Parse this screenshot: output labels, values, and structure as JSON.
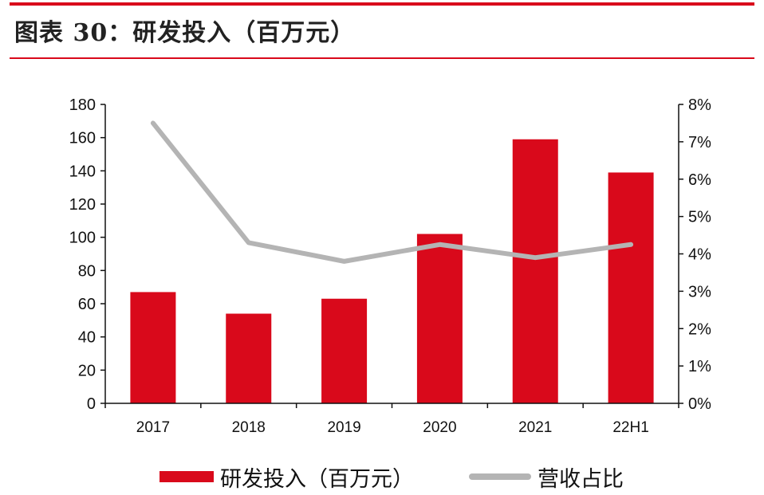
{
  "header": {
    "title": "图表 30：研发投入（百万元）"
  },
  "colors": {
    "accent_red": "#d9091b",
    "line_gray": "#b4b4b4",
    "axis": "#111111"
  },
  "chart_data": {
    "type": "bar",
    "categories": [
      "2017",
      "2018",
      "2019",
      "2020",
      "2021",
      "22H1"
    ],
    "series": [
      {
        "name": "研发投入（百万元）",
        "type": "bar",
        "axis": "left",
        "values": [
          67,
          54,
          63,
          102,
          159,
          139
        ]
      },
      {
        "name": "营收占比",
        "type": "line",
        "axis": "right",
        "values": [
          7.5,
          4.3,
          3.8,
          4.25,
          3.9,
          4.25
        ]
      }
    ],
    "y_left": {
      "min": 0,
      "max": 180,
      "step": 20,
      "ticks": [
        "0",
        "20",
        "40",
        "60",
        "80",
        "100",
        "120",
        "140",
        "160",
        "180"
      ]
    },
    "y_right": {
      "min": 0,
      "max": 8,
      "step": 1,
      "unit": "%",
      "ticks": [
        "0%",
        "1%",
        "2%",
        "3%",
        "4%",
        "5%",
        "6%",
        "7%",
        "8%"
      ]
    },
    "grid": false,
    "legend_position": "bottom"
  },
  "legend": {
    "items": [
      {
        "label": "研发投入（百万元）",
        "kind": "bar"
      },
      {
        "label": "营收占比",
        "kind": "line"
      }
    ]
  }
}
